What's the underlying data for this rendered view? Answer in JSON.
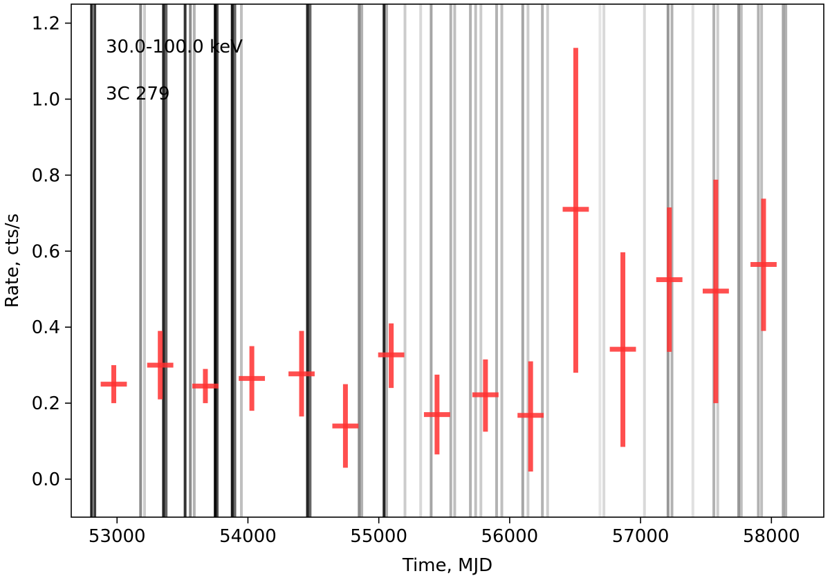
{
  "chart_data": {
    "type": "scatter",
    "xlabel": "Time, MJD",
    "ylabel": "Rate, cts/s",
    "xlim": [
      52650,
      58400
    ],
    "ylim": [
      -0.1,
      1.25
    ],
    "xticks": [
      53000,
      54000,
      55000,
      56000,
      57000,
      58000
    ],
    "yticks": [
      0.0,
      0.2,
      0.4,
      0.6,
      0.8,
      1.0,
      1.2
    ],
    "ytick_labels": [
      "0.0",
      "0.2",
      "0.4",
      "0.6",
      "0.8",
      "1.0",
      "1.2"
    ],
    "annotations": [
      "30.0-100.0 keV",
      "3C 279"
    ],
    "grid": false,
    "series": [
      {
        "color": "#ff3030",
        "points": [
          {
            "x": 52975,
            "y": 0.25,
            "xerr": 100,
            "ylo": 0.2,
            "yhi": 0.3
          },
          {
            "x": 53330,
            "y": 0.3,
            "xerr": 100,
            "ylo": 0.21,
            "yhi": 0.39
          },
          {
            "x": 53675,
            "y": 0.245,
            "xerr": 100,
            "ylo": 0.2,
            "yhi": 0.29
          },
          {
            "x": 54030,
            "y": 0.265,
            "xerr": 100,
            "ylo": 0.18,
            "yhi": 0.35
          },
          {
            "x": 54410,
            "y": 0.277,
            "xerr": 100,
            "ylo": 0.165,
            "yhi": 0.39
          },
          {
            "x": 54745,
            "y": 0.14,
            "xerr": 100,
            "ylo": 0.03,
            "yhi": 0.25
          },
          {
            "x": 55095,
            "y": 0.327,
            "xerr": 100,
            "ylo": 0.24,
            "yhi": 0.41
          },
          {
            "x": 55445,
            "y": 0.17,
            "xerr": 100,
            "ylo": 0.065,
            "yhi": 0.275
          },
          {
            "x": 55815,
            "y": 0.222,
            "xerr": 100,
            "ylo": 0.125,
            "yhi": 0.315
          },
          {
            "x": 56160,
            "y": 0.168,
            "xerr": 100,
            "ylo": 0.02,
            "yhi": 0.31
          },
          {
            "x": 56505,
            "y": 0.71,
            "xerr": 100,
            "ylo": 0.28,
            "yhi": 1.135
          },
          {
            "x": 56865,
            "y": 0.342,
            "xerr": 100,
            "ylo": 0.085,
            "yhi": 0.597
          },
          {
            "x": 57220,
            "y": 0.525,
            "xerr": 100,
            "ylo": 0.335,
            "yhi": 0.715
          },
          {
            "x": 57575,
            "y": 0.495,
            "xerr": 100,
            "ylo": 0.2,
            "yhi": 0.788
          },
          {
            "x": 57940,
            "y": 0.565,
            "xerr": 100,
            "ylo": 0.39,
            "yhi": 0.738
          }
        ]
      }
    ],
    "vlines": [
      {
        "x": 52805,
        "o": 0.85
      },
      {
        "x": 52830,
        "o": 0.75
      },
      {
        "x": 53180,
        "o": 0.45
      },
      {
        "x": 53210,
        "o": 0.2
      },
      {
        "x": 53355,
        "o": 0.85
      },
      {
        "x": 53375,
        "o": 0.6
      },
      {
        "x": 53520,
        "o": 0.8
      },
      {
        "x": 53560,
        "o": 0.45
      },
      {
        "x": 53590,
        "o": 0.3
      },
      {
        "x": 53750,
        "o": 0.95
      },
      {
        "x": 53765,
        "o": 0.7
      },
      {
        "x": 53880,
        "o": 0.9
      },
      {
        "x": 53900,
        "o": 0.6
      },
      {
        "x": 53950,
        "o": 0.25
      },
      {
        "x": 54455,
        "o": 0.85
      },
      {
        "x": 54475,
        "o": 0.6
      },
      {
        "x": 54850,
        "o": 0.45
      },
      {
        "x": 54870,
        "o": 0.3
      },
      {
        "x": 55040,
        "o": 0.85
      },
      {
        "x": 55060,
        "o": 0.3
      },
      {
        "x": 55200,
        "o": 0.2
      },
      {
        "x": 55320,
        "o": 0.15
      },
      {
        "x": 55400,
        "o": 0.35
      },
      {
        "x": 55550,
        "o": 0.3
      },
      {
        "x": 55580,
        "o": 0.25
      },
      {
        "x": 55700,
        "o": 0.3
      },
      {
        "x": 55740,
        "o": 0.25
      },
      {
        "x": 55780,
        "o": 0.2
      },
      {
        "x": 55900,
        "o": 0.3
      },
      {
        "x": 55940,
        "o": 0.25
      },
      {
        "x": 56100,
        "o": 0.35
      },
      {
        "x": 56140,
        "o": 0.2
      },
      {
        "x": 56250,
        "o": 0.3
      },
      {
        "x": 56290,
        "o": 0.2
      },
      {
        "x": 56690,
        "o": 0.1
      },
      {
        "x": 56720,
        "o": 0.15
      },
      {
        "x": 57030,
        "o": 0.15
      },
      {
        "x": 57210,
        "o": 0.4
      },
      {
        "x": 57240,
        "o": 0.3
      },
      {
        "x": 57400,
        "o": 0.12
      },
      {
        "x": 57560,
        "o": 0.3
      },
      {
        "x": 57590,
        "o": 0.2
      },
      {
        "x": 57750,
        "o": 0.4
      },
      {
        "x": 57770,
        "o": 0.25
      },
      {
        "x": 57900,
        "o": 0.3
      },
      {
        "x": 57925,
        "o": 0.25
      },
      {
        "x": 58090,
        "o": 0.35
      },
      {
        "x": 58110,
        "o": 0.3
      }
    ]
  }
}
